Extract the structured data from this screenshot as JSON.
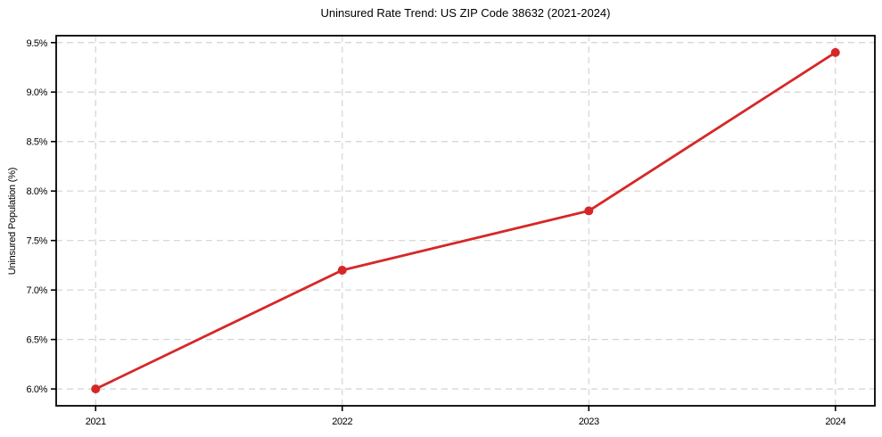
{
  "chart_data": {
    "type": "line",
    "title": "Uninsured Rate Trend: US ZIP Code 38632 (2021-2024)",
    "xlabel": "",
    "ylabel": "Uninsured Population (%)",
    "x": [
      2021,
      2022,
      2023,
      2024
    ],
    "values": [
      6.0,
      7.2,
      7.8,
      9.4
    ],
    "x_ticks": [
      {
        "value": 2021,
        "label": "2021"
      },
      {
        "value": 2022,
        "label": "2022"
      },
      {
        "value": 2023,
        "label": "2023"
      },
      {
        "value": 2024,
        "label": "2024"
      }
    ],
    "y_ticks": [
      {
        "value": 6.0,
        "label": "6.0%"
      },
      {
        "value": 6.5,
        "label": "6.5%"
      },
      {
        "value": 7.0,
        "label": "7.0%"
      },
      {
        "value": 7.5,
        "label": "7.5%"
      },
      {
        "value": 8.0,
        "label": "8.0%"
      },
      {
        "value": 8.5,
        "label": "8.5%"
      },
      {
        "value": 9.0,
        "label": "9.0%"
      },
      {
        "value": 9.5,
        "label": "9.5%"
      }
    ],
    "xlim": [
      2020.84,
      2024.16
    ],
    "ylim": [
      5.83,
      9.57
    ],
    "grid": true,
    "legend": false,
    "colors": {
      "line": "#d62728",
      "marker": "#d62728",
      "grid": "#d3d3d3",
      "axis": "#000000",
      "text": "#000000",
      "background": "#ffffff"
    }
  }
}
